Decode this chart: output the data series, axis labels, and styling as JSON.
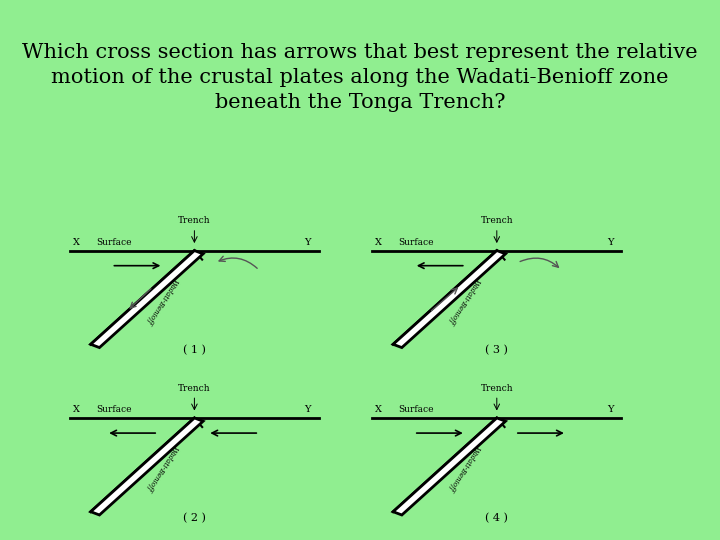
{
  "title_line1": "Which cross section has arrows that best represent the relative",
  "title_line2": "motion of the crustal plates along the Wadati-Benioff zone",
  "title_line3": "beneath the Tonga Trench?",
  "title_fontsize": 15,
  "header_bg": "#aecfe8",
  "body_bg": "#90ee90",
  "panel_bg": "#ffffff",
  "labels": [
    "( 1 )",
    "( 3 )",
    "( 2 )",
    "( 4 )"
  ]
}
